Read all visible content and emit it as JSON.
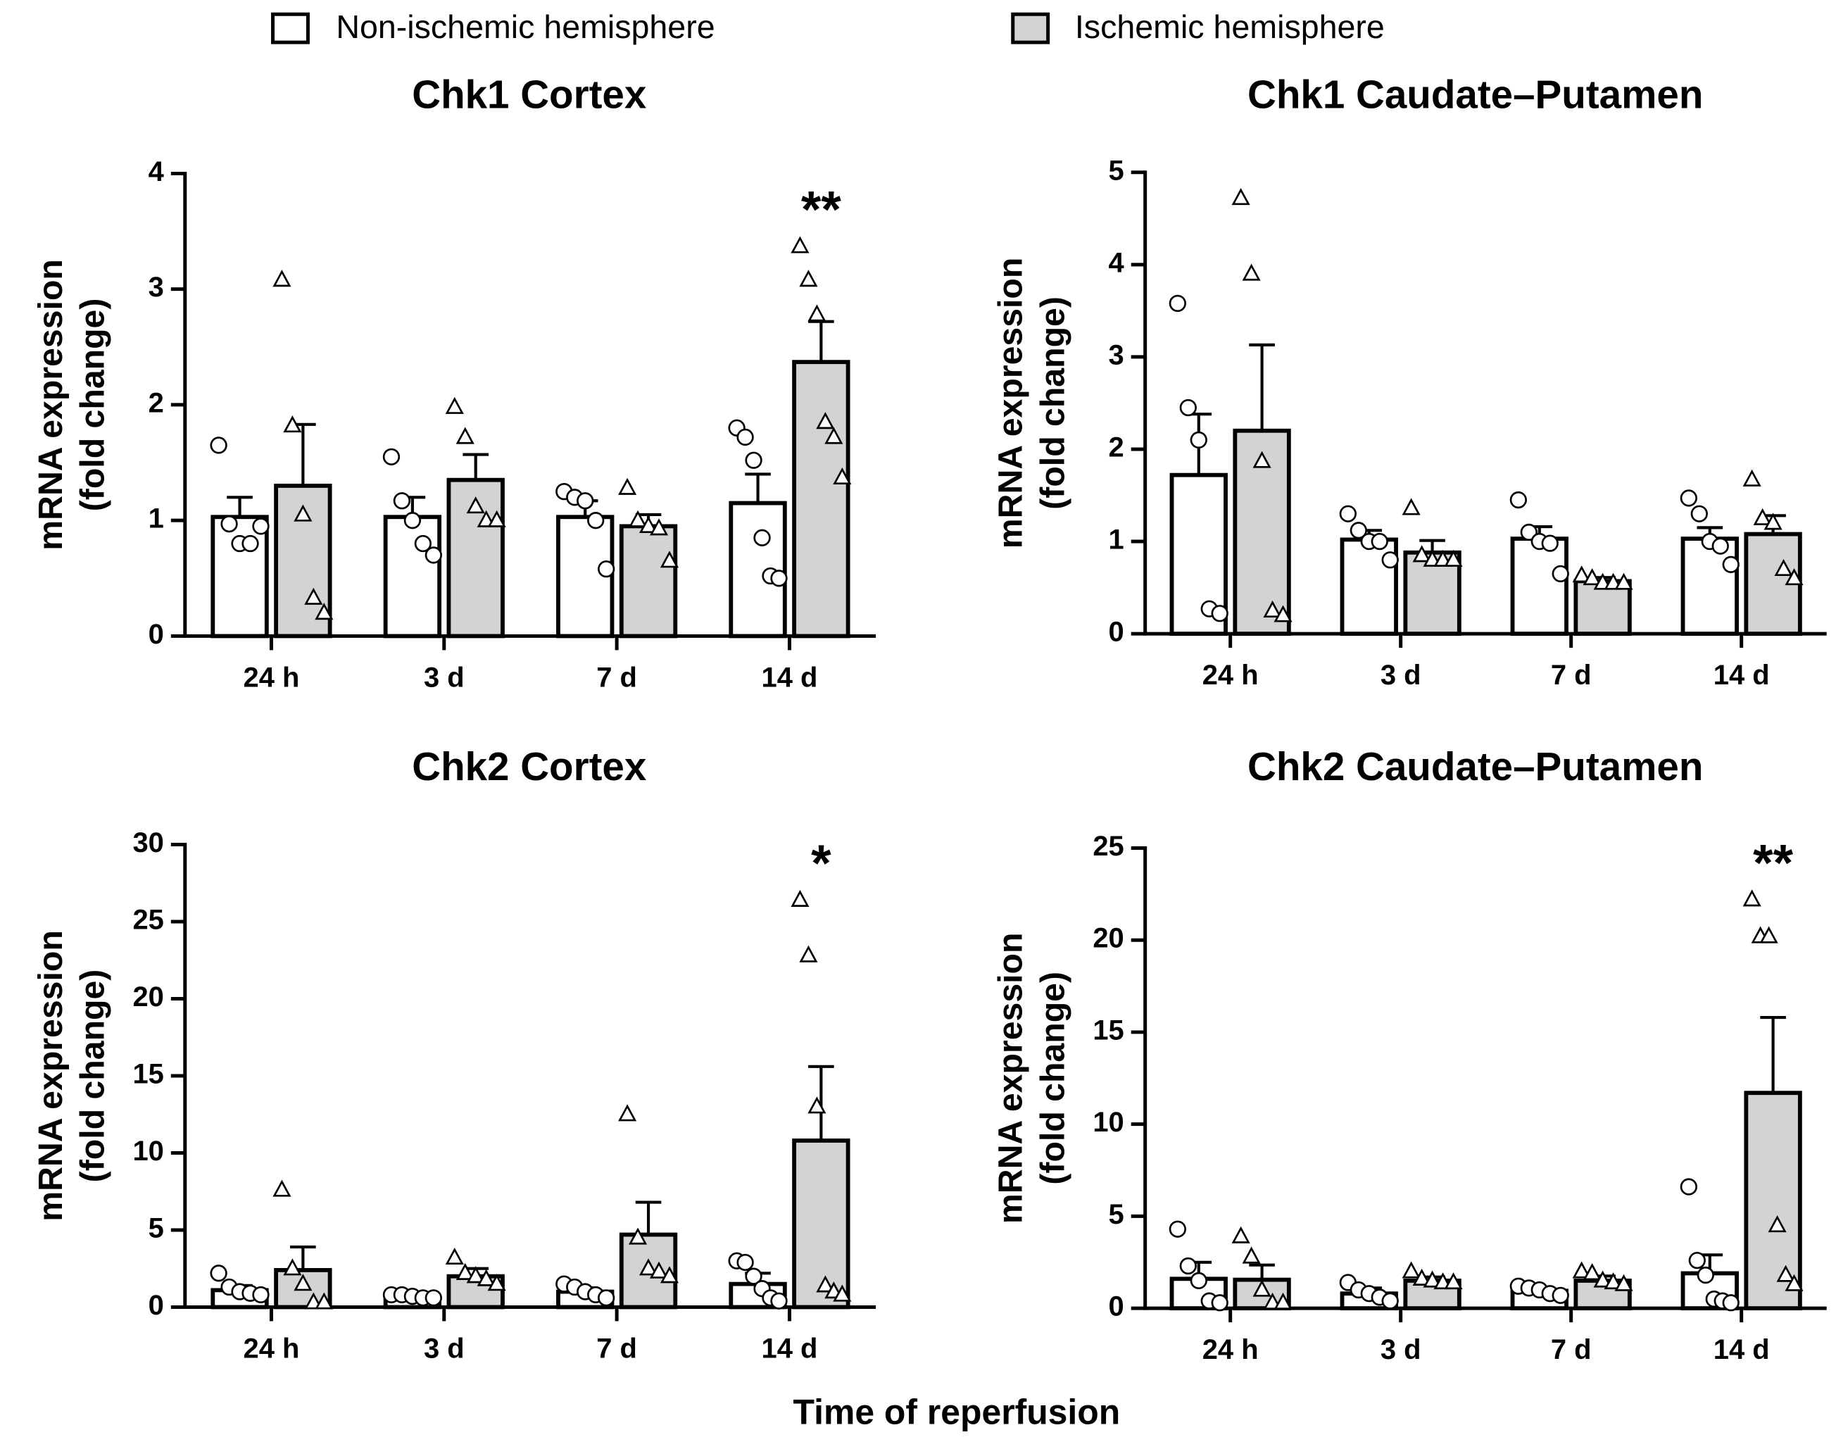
{
  "xlabel": "Time of reperfusion",
  "chart_data": [
    {
      "type": "bar",
      "title": "Chk1 Cortex",
      "ylabel": [
        "mRNA expression",
        "(fold change)"
      ],
      "categories": [
        "24 h",
        "3 d",
        "7 d",
        "14 d"
      ],
      "ylim": [
        0,
        4
      ],
      "yticks": [
        0,
        1,
        2,
        3,
        4
      ],
      "series": [
        {
          "name": "Non-ischemic hemisphere",
          "color": "#ffffff",
          "marker": "circle",
          "values": [
            1.03,
            1.03,
            1.03,
            1.15
          ],
          "errors": [
            0.17,
            0.17,
            0.14,
            0.25
          ],
          "points": [
            [
              1.65,
              0.97,
              0.8,
              0.8,
              0.95
            ],
            [
              1.55,
              1.17,
              1.0,
              0.8,
              0.7
            ],
            [
              1.25,
              1.2,
              1.17,
              1.0,
              0.58
            ],
            [
              1.8,
              1.72,
              1.52,
              0.85,
              0.52,
              0.5
            ]
          ]
        },
        {
          "name": "Ischemic hemisphere",
          "color": "#d3d3d3",
          "marker": "triangle",
          "values": [
            1.3,
            1.35,
            0.95,
            2.37
          ],
          "errors": [
            0.53,
            0.22,
            0.1,
            0.35
          ],
          "points": [
            [
              3.08,
              1.82,
              1.05,
              0.33,
              0.2
            ],
            [
              1.98,
              1.72,
              1.12,
              1.0,
              1.0
            ],
            [
              1.28,
              1.0,
              0.95,
              0.93,
              0.65
            ],
            [
              3.37,
              3.08,
              2.78,
              1.85,
              1.72,
              1.37
            ]
          ]
        }
      ],
      "annotations": [
        {
          "text": "**",
          "category": "14 d",
          "series": "Ischemic hemisphere"
        }
      ]
    },
    {
      "type": "bar",
      "title": "Chk1 Caudate–Putamen",
      "ylabel": [
        "mRNA expression",
        "(fold change)"
      ],
      "categories": [
        "24 h",
        "3 d",
        "7 d",
        "14 d"
      ],
      "ylim": [
        0,
        5
      ],
      "yticks": [
        0,
        1,
        2,
        3,
        4,
        5
      ],
      "series": [
        {
          "name": "Non-ischemic hemisphere",
          "color": "#ffffff",
          "marker": "circle",
          "values": [
            1.72,
            1.02,
            1.03,
            1.03
          ],
          "errors": [
            0.66,
            0.1,
            0.13,
            0.12
          ],
          "points": [
            [
              3.58,
              2.45,
              2.1,
              0.27,
              0.22
            ],
            [
              1.3,
              1.12,
              1.0,
              1.0,
              0.8
            ],
            [
              1.45,
              1.1,
              1.0,
              0.98,
              0.65
            ],
            [
              1.47,
              1.3,
              1.0,
              0.95,
              0.75
            ]
          ]
        },
        {
          "name": "Ischemic hemisphere",
          "color": "#d3d3d3",
          "marker": "triangle",
          "values": [
            2.2,
            0.88,
            0.57,
            1.08
          ],
          "errors": [
            0.93,
            0.13,
            0.04,
            0.2
          ],
          "points": [
            [
              4.72,
              3.9,
              1.87,
              0.25,
              0.2
            ],
            [
              1.36,
              0.85,
              0.8,
              0.8,
              0.8
            ],
            [
              0.63,
              0.6,
              0.55,
              0.55,
              0.55
            ],
            [
              1.67,
              1.25,
              1.2,
              0.7,
              0.6
            ]
          ]
        }
      ],
      "annotations": []
    },
    {
      "type": "bar",
      "title": "Chk2 Cortex",
      "ylabel": [
        "mRNA expression",
        "(fold change)"
      ],
      "categories": [
        "24 h",
        "3 d",
        "7 d",
        "14 d"
      ],
      "ylim": [
        0,
        30
      ],
      "yticks": [
        0,
        5,
        10,
        15,
        20,
        25,
        30
      ],
      "series": [
        {
          "name": "Non-ischemic hemisphere",
          "color": "#ffffff",
          "marker": "circle",
          "values": [
            1.1,
            0.7,
            1.0,
            1.5
          ],
          "errors": [
            0.3,
            0.1,
            0.25,
            0.7
          ],
          "points": [
            [
              2.2,
              1.3,
              1.0,
              0.9,
              0.8
            ],
            [
              0.8,
              0.8,
              0.7,
              0.6,
              0.6
            ],
            [
              1.5,
              1.3,
              1.0,
              0.8,
              0.6
            ],
            [
              3.0,
              2.9,
              2.0,
              1.2,
              0.6,
              0.4
            ]
          ]
        },
        {
          "name": "Ischemic hemisphere",
          "color": "#d3d3d3",
          "marker": "triangle",
          "values": [
            2.4,
            2.0,
            4.7,
            10.8
          ],
          "errors": [
            1.5,
            0.5,
            2.1,
            4.8
          ],
          "points": [
            [
              7.6,
              2.5,
              1.5,
              0.3,
              0.3
            ],
            [
              3.2,
              2.2,
              2.0,
              1.8,
              1.5
            ],
            [
              12.5,
              4.5,
              2.5,
              2.3,
              2.0
            ],
            [
              26.4,
              22.8,
              13.0,
              1.4,
              1.0,
              0.8
            ]
          ]
        }
      ],
      "annotations": [
        {
          "text": "*",
          "category": "14 d",
          "series": "Ischemic hemisphere"
        }
      ]
    },
    {
      "type": "bar",
      "title": "Chk2 Caudate–Putamen",
      "ylabel": [
        "mRNA expression",
        "(fold change)"
      ],
      "categories": [
        "24 h",
        "3 d",
        "7 d",
        "14 d"
      ],
      "ylim": [
        0,
        25
      ],
      "yticks": [
        0,
        5,
        10,
        15,
        20,
        25
      ],
      "series": [
        {
          "name": "Non-ischemic hemisphere",
          "color": "#ffffff",
          "marker": "circle",
          "values": [
            1.6,
            0.8,
            0.95,
            1.9
          ],
          "errors": [
            0.9,
            0.3,
            0.2,
            1.0
          ],
          "points": [
            [
              4.3,
              2.3,
              1.5,
              0.4,
              0.3
            ],
            [
              1.4,
              1.0,
              0.8,
              0.6,
              0.4
            ],
            [
              1.2,
              1.1,
              1.0,
              0.8,
              0.7
            ],
            [
              6.6,
              2.6,
              1.8,
              0.5,
              0.4,
              0.3
            ]
          ]
        },
        {
          "name": "Ischemic hemisphere",
          "color": "#d3d3d3",
          "marker": "triangle",
          "values": [
            1.55,
            1.5,
            1.5,
            11.7
          ],
          "errors": [
            0.8,
            0.2,
            0.25,
            4.1
          ],
          "points": [
            [
              3.9,
              2.8,
              1.0,
              0.3,
              0.3
            ],
            [
              2.0,
              1.6,
              1.5,
              1.4,
              1.4
            ],
            [
              2.0,
              1.9,
              1.5,
              1.4,
              1.3
            ],
            [
              22.2,
              20.2,
              20.2,
              4.5,
              1.8,
              1.3
            ]
          ]
        }
      ],
      "annotations": [
        {
          "text": "**",
          "category": "14 d",
          "series": "Ischemic hemisphere"
        }
      ]
    }
  ]
}
